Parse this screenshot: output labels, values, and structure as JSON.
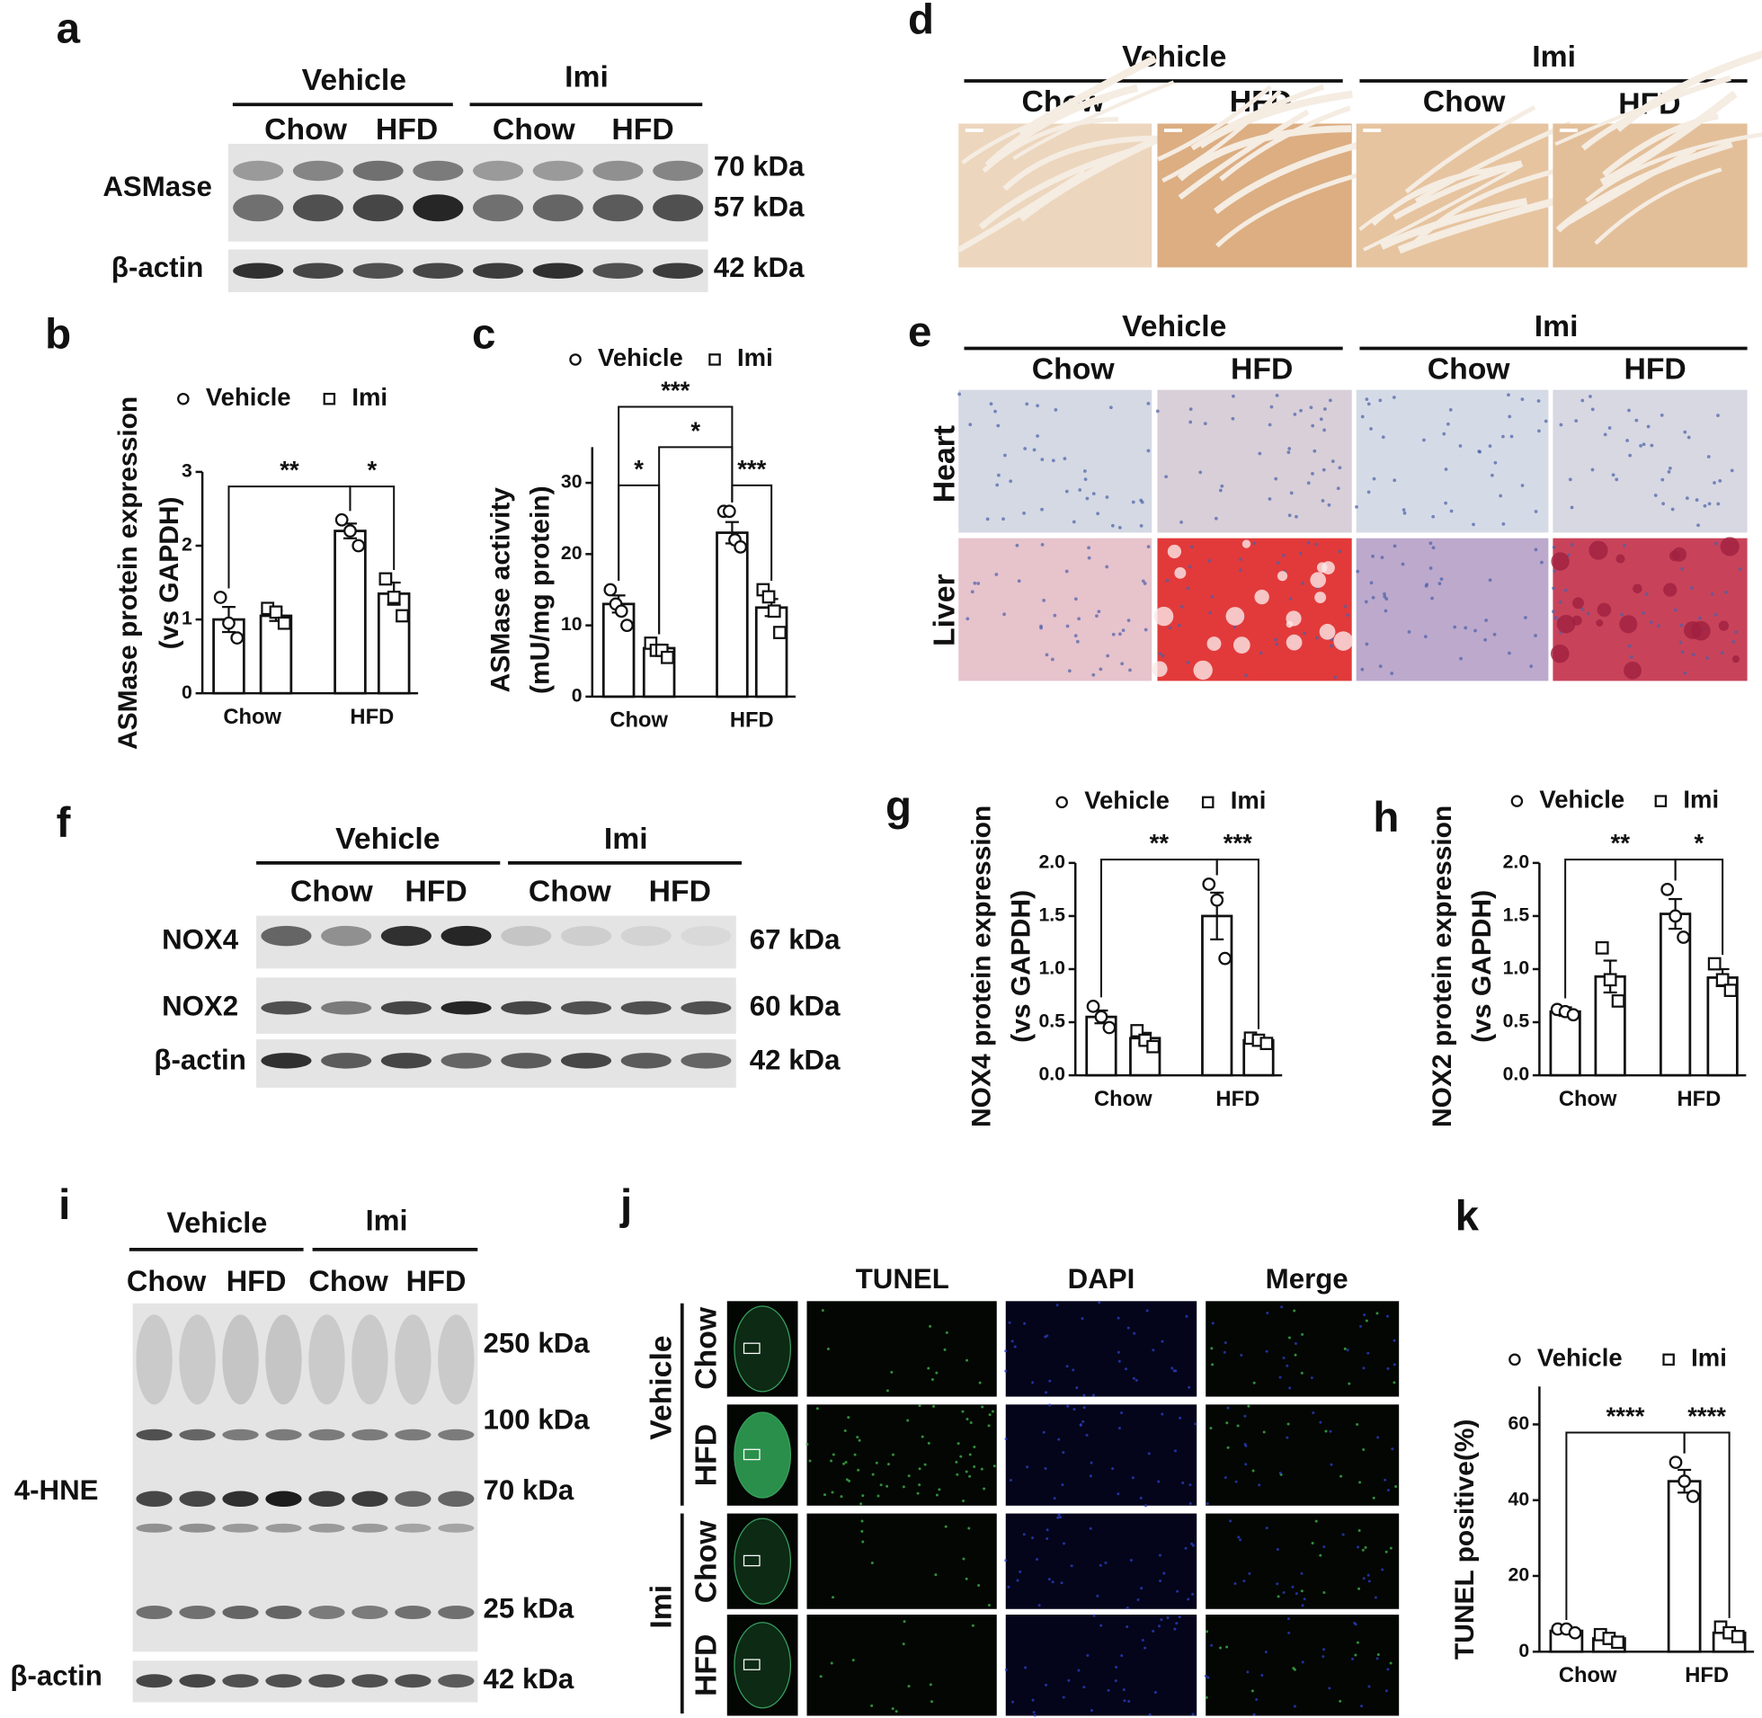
{
  "panels": {
    "a": {
      "label": "a",
      "groups": [
        "Vehicle",
        "Imi"
      ],
      "conditions": [
        "Chow",
        "HFD",
        "Chow",
        "HFD"
      ],
      "rows": [
        "ASMase",
        "β-actin"
      ],
      "sizes": [
        "70 kDa",
        "57 kDa",
        "42 kDa"
      ]
    },
    "d": {
      "label": "d",
      "groups": [
        "Vehicle",
        "Imi"
      ],
      "conditions": [
        "Chow",
        "HFD",
        "Chow",
        "HFD"
      ]
    },
    "e": {
      "label": "e",
      "groups": [
        "Vehicle",
        "Imi"
      ],
      "conditions": [
        "Chow",
        "HFD",
        "Chow",
        "HFD"
      ],
      "rows": [
        "Heart",
        "Liver"
      ]
    },
    "f": {
      "label": "f",
      "groups": [
        "Vehicle",
        "Imi"
      ],
      "conditions": [
        "Chow",
        "HFD",
        "Chow",
        "HFD"
      ],
      "rows": [
        "NOX4",
        "NOX2",
        "β-actin"
      ],
      "sizes": [
        "67 kDa",
        "60 kDa",
        "42 kDa"
      ]
    },
    "i": {
      "label": "i",
      "groups": [
        "Vehicle",
        "Imi"
      ],
      "conditions": [
        "Chow",
        "HFD",
        "Chow",
        "HFD"
      ],
      "rows": [
        "4-HNE",
        "β-actin"
      ],
      "sizes": [
        "250 kDa",
        "100 kDa",
        "70 kDa",
        "25 kDa",
        "42 kDa"
      ]
    },
    "j": {
      "label": "j",
      "columns": [
        "TUNEL",
        "DAPI",
        "Merge"
      ],
      "groups": [
        "Vehicle",
        "Imi"
      ],
      "conditions": [
        "Chow",
        "HFD",
        "Chow",
        "HFD"
      ]
    }
  },
  "chart_data": [
    {
      "type": "bar",
      "panel_label": "b",
      "y_label": [
        "ASMase protein expression",
        "(vs GAPDH)"
      ],
      "categories": [
        "Chow",
        "HFD"
      ],
      "series": [
        {
          "name": "Vehicle",
          "color": "#ffffff",
          "marker": "circle",
          "values": [
            1.0,
            2.2
          ],
          "errors": [
            0.17,
            0.1
          ],
          "points": [
            [
              1.3,
              0.95,
              0.75
            ],
            [
              2.35,
              2.2,
              2.0
            ]
          ]
        },
        {
          "name": "Imi",
          "color": "#ffffff",
          "marker": "square",
          "values": [
            1.05,
            1.35
          ],
          "errors": [
            0.07,
            0.15
          ],
          "points": [
            [
              1.15,
              1.1,
              0.95
            ],
            [
              1.55,
              1.3,
              1.05
            ]
          ]
        }
      ],
      "ylim": [
        0,
        3
      ],
      "yticks": [
        0,
        1,
        2,
        3
      ],
      "significance": [
        "**",
        "*"
      ]
    },
    {
      "type": "bar",
      "panel_label": "c",
      "y_label": [
        "ASMase activity",
        "(mU/mg protein)"
      ],
      "categories": [
        "Chow",
        "HFD"
      ],
      "series": [
        {
          "name": "Vehicle",
          "color": "#ffffff",
          "marker": "circle",
          "values": [
            13,
            23
          ],
          "errors": [
            1.2,
            1.5
          ],
          "points": [
            [
              15,
              13,
              12,
              10
            ],
            [
              26,
              26,
              22,
              21
            ]
          ]
        },
        {
          "name": "Imi",
          "color": "#ffffff",
          "marker": "square",
          "values": [
            6.8,
            12.5
          ],
          "errors": [
            0.5,
            1.2
          ],
          "points": [
            [
              7.5,
              6.5,
              6.5,
              5.5
            ],
            [
              15,
              14,
              12,
              9
            ]
          ]
        }
      ],
      "ylim": [
        0,
        35
      ],
      "yticks": [
        0,
        10,
        20,
        30
      ],
      "significance": [
        "***",
        "*",
        "*",
        "***"
      ]
    },
    {
      "type": "bar",
      "panel_label": "g",
      "y_label": [
        "NOX4 protein expression",
        "(vs GAPDH)"
      ],
      "categories": [
        "Chow",
        "HFD"
      ],
      "series": [
        {
          "name": "Vehicle",
          "color": "#ffffff",
          "marker": "circle",
          "values": [
            0.55,
            1.5
          ],
          "errors": [
            0.06,
            0.22
          ],
          "points": [
            [
              0.65,
              0.55,
              0.45
            ],
            [
              1.8,
              1.65,
              1.1
            ]
          ]
        },
        {
          "name": "Imi",
          "color": "#ffffff",
          "marker": "square",
          "values": [
            0.35,
            0.33
          ],
          "errors": [
            0.05,
            0.02
          ],
          "points": [
            [
              0.42,
              0.33,
              0.27
            ],
            [
              0.35,
              0.33,
              0.3
            ]
          ]
        }
      ],
      "ylim": [
        0,
        2.0
      ],
      "yticks": [
        {
          "value": 0,
          "label": "0.0"
        },
        0.5,
        {
          "value": 1,
          "label": "1.0"
        },
        1.5,
        {
          "value": 2,
          "label": "2.0"
        }
      ],
      "significance": [
        "**",
        "***"
      ]
    },
    {
      "type": "bar",
      "panel_label": "h",
      "y_label": [
        "NOX2 protein expression",
        "(vs GAPDH)"
      ],
      "categories": [
        "Chow",
        "HFD"
      ],
      "series": [
        {
          "name": "Vehicle",
          "color": "#ffffff",
          "marker": "circle",
          "values": [
            0.6,
            1.52
          ],
          "errors": [
            0.04,
            0.14
          ],
          "points": [
            [
              0.62,
              0.6,
              0.57
            ],
            [
              1.75,
              1.5,
              1.3
            ]
          ]
        },
        {
          "name": "Imi",
          "color": "#ffffff",
          "marker": "square",
          "values": [
            0.93,
            0.92
          ],
          "errors": [
            0.15,
            0.08
          ],
          "points": [
            [
              1.2,
              0.9,
              0.7
            ],
            [
              1.05,
              0.9,
              0.8
            ]
          ]
        }
      ],
      "ylim": [
        0,
        2.0
      ],
      "yticks": [
        {
          "value": 0,
          "label": "0.0"
        },
        0.5,
        {
          "value": 1,
          "label": "1.0"
        },
        1.5,
        {
          "value": 2,
          "label": "2.0"
        }
      ],
      "significance": [
        "**",
        "*"
      ]
    },
    {
      "type": "bar",
      "panel_label": "k",
      "y_label": [
        "TUNEL positive(%)"
      ],
      "categories": [
        "Chow",
        "HFD"
      ],
      "series": [
        {
          "name": "Vehicle",
          "color": "#ffffff",
          "marker": "circle",
          "values": [
            5.5,
            45
          ],
          "errors": [
            0.5,
            3.0
          ],
          "points": [
            [
              6,
              6,
              5
            ],
            [
              50,
              45,
              41
            ]
          ]
        },
        {
          "name": "Imi",
          "color": "#ffffff",
          "marker": "square",
          "values": [
            3.5,
            5
          ],
          "errors": [
            0.6,
            0.7
          ],
          "points": [
            [
              4.5,
              3.5,
              2.5
            ],
            [
              6.5,
              5,
              4
            ]
          ]
        }
      ],
      "ylim": [
        0,
        70
      ],
      "yticks": [
        0,
        20,
        40,
        60
      ],
      "significance": [
        "****",
        "****"
      ]
    }
  ]
}
